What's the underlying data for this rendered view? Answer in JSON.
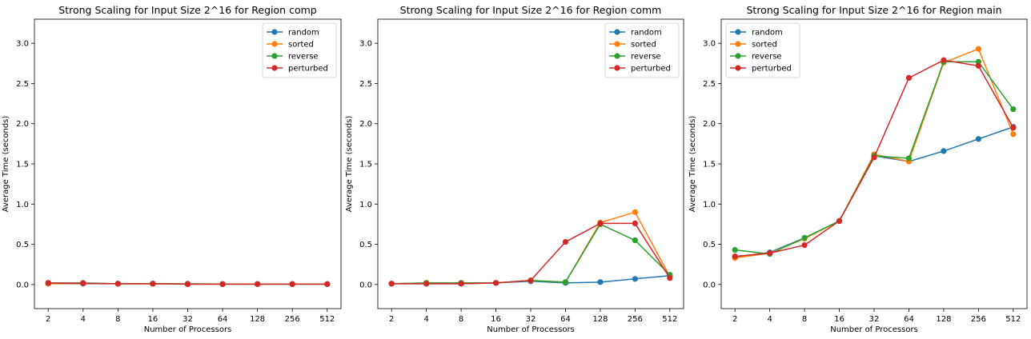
{
  "chart_data": [
    {
      "type": "line",
      "title": "Strong Scaling for Input Size 2^16 for Region comp",
      "xlabel": "Number of Processors",
      "ylabel": "Average Time (seconds)",
      "categories": [
        "2",
        "4",
        "8",
        "16",
        "32",
        "64",
        "128",
        "256",
        "512"
      ],
      "ylim": [
        -0.3,
        3.3
      ],
      "yticks": [
        "0.0",
        "0.5",
        "1.0",
        "1.5",
        "2.0",
        "2.5",
        "3.0"
      ],
      "legend_position": "top-right",
      "series": [
        {
          "name": "random",
          "color": "#1f77b4",
          "values": [
            0.01,
            0.01,
            0.01,
            0.01,
            0.005,
            0.005,
            0.005,
            0.005,
            0.005
          ]
        },
        {
          "name": "sorted",
          "color": "#ff7f0e",
          "values": [
            0.01,
            0.015,
            0.01,
            0.01,
            0.005,
            0.005,
            0.005,
            0.005,
            0.005
          ]
        },
        {
          "name": "reverse",
          "color": "#2ca02c",
          "values": [
            0.02,
            0.02,
            0.01,
            0.01,
            0.01,
            0.005,
            0.005,
            0.005,
            0.005
          ]
        },
        {
          "name": "perturbed",
          "color": "#d62728",
          "values": [
            0.02,
            0.015,
            0.01,
            0.01,
            0.005,
            0.005,
            0.005,
            0.005,
            0.005
          ]
        }
      ]
    },
    {
      "type": "line",
      "title": "Strong Scaling for Input Size 2^16 for Region comm",
      "xlabel": "Number of Processors",
      "ylabel": "Average Time (seconds)",
      "categories": [
        "2",
        "4",
        "8",
        "16",
        "32",
        "64",
        "128",
        "256",
        "512"
      ],
      "ylim": [
        -0.3,
        3.3
      ],
      "yticks": [
        "0.0",
        "0.5",
        "1.0",
        "1.5",
        "2.0",
        "2.5",
        "3.0"
      ],
      "legend_position": "top-right",
      "series": [
        {
          "name": "random",
          "color": "#1f77b4",
          "values": [
            0.01,
            0.01,
            0.01,
            0.02,
            0.04,
            0.02,
            0.03,
            0.07,
            0.11
          ]
        },
        {
          "name": "sorted",
          "color": "#ff7f0e",
          "values": [
            0.01,
            0.02,
            0.02,
            0.02,
            0.05,
            0.03,
            0.77,
            0.9,
            0.1
          ]
        },
        {
          "name": "reverse",
          "color": "#2ca02c",
          "values": [
            0.01,
            0.02,
            0.02,
            0.02,
            0.05,
            0.03,
            0.75,
            0.55,
            0.12
          ]
        },
        {
          "name": "perturbed",
          "color": "#d62728",
          "values": [
            0.01,
            0.01,
            0.01,
            0.02,
            0.05,
            0.53,
            0.76,
            0.76,
            0.08
          ]
        }
      ]
    },
    {
      "type": "line",
      "title": "Strong Scaling for Input Size 2^16 for Region main",
      "xlabel": "Number of Processors",
      "ylabel": "Average Time (seconds)",
      "categories": [
        "2",
        "4",
        "8",
        "16",
        "32",
        "64",
        "128",
        "256",
        "512"
      ],
      "ylim": [
        -0.3,
        3.3
      ],
      "yticks": [
        "0.0",
        "0.5",
        "1.0",
        "1.5",
        "2.0",
        "2.5",
        "3.0"
      ],
      "legend_position": "top-left",
      "series": [
        {
          "name": "random",
          "color": "#1f77b4",
          "values": [
            0.34,
            0.4,
            0.58,
            0.79,
            1.6,
            1.53,
            1.66,
            1.81,
            1.96
          ]
        },
        {
          "name": "sorted",
          "color": "#ff7f0e",
          "values": [
            0.33,
            0.39,
            0.57,
            0.79,
            1.62,
            1.53,
            2.76,
            2.93,
            1.87
          ]
        },
        {
          "name": "reverse",
          "color": "#2ca02c",
          "values": [
            0.43,
            0.38,
            0.58,
            0.79,
            1.6,
            1.57,
            2.77,
            2.77,
            2.18
          ]
        },
        {
          "name": "perturbed",
          "color": "#d62728",
          "values": [
            0.35,
            0.39,
            0.49,
            0.79,
            1.58,
            2.57,
            2.79,
            2.72,
            1.95
          ]
        }
      ]
    }
  ]
}
